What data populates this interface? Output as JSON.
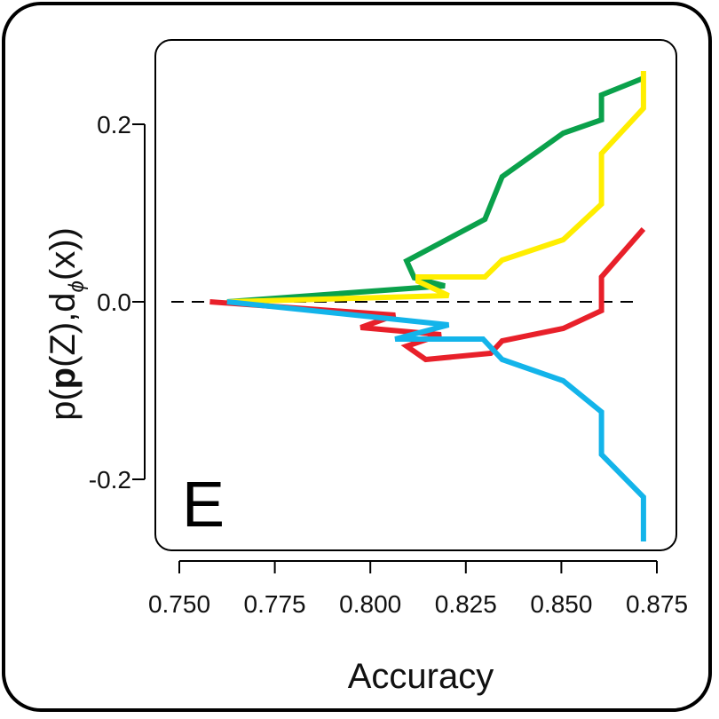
{
  "panel_label": "E",
  "colors": {
    "green": "#0aa14b",
    "yellow": "#ffee00",
    "red": "#e8202a",
    "blue": "#13b4ea",
    "frame": "#000000",
    "zero_line": "#000000"
  },
  "chart_data": {
    "type": "line",
    "xlabel": "Accuracy",
    "ylabel": {
      "p1": "p(",
      "bold": "p",
      "p2": "(Z),d",
      "sub": "ϕ",
      "p3": "(x))"
    },
    "xlim": [
      0.748,
      0.878
    ],
    "ylim": [
      -0.27,
      0.29
    ],
    "x_ticks": [
      0.75,
      0.775,
      0.8,
      0.825,
      0.85,
      0.875
    ],
    "x_tick_labels": [
      "0.750",
      "0.775",
      "0.800",
      "0.825",
      "0.850",
      "0.875"
    ],
    "y_ticks": [
      0.2,
      0.0,
      -0.2
    ],
    "y_tick_labels": [
      "0.2",
      "0.0",
      "-0.2"
    ],
    "reference_line": {
      "y": 0.0,
      "style": "dashed"
    },
    "grid": false,
    "series": [
      {
        "color_key": "green",
        "points": [
          [
            0.7625,
            0.0
          ],
          [
            0.8195,
            0.018
          ],
          [
            0.8115,
            0.027
          ],
          [
            0.8095,
            0.046
          ],
          [
            0.83,
            0.093
          ],
          [
            0.8345,
            0.141
          ],
          [
            0.8505,
            0.19
          ],
          [
            0.8605,
            0.205
          ],
          [
            0.8605,
            0.233
          ],
          [
            0.8715,
            0.252
          ]
        ]
      },
      {
        "color_key": "yellow",
        "points": [
          [
            0.7625,
            0.0
          ],
          [
            0.8205,
            0.007
          ],
          [
            0.8125,
            0.023
          ],
          [
            0.8125,
            0.028
          ],
          [
            0.83,
            0.028
          ],
          [
            0.8345,
            0.047
          ],
          [
            0.8505,
            0.07
          ],
          [
            0.8605,
            0.11
          ],
          [
            0.8605,
            0.167
          ],
          [
            0.8715,
            0.218
          ],
          [
            0.8715,
            0.26
          ]
        ]
      },
      {
        "color_key": "red",
        "points": [
          [
            0.758,
            0.0
          ],
          [
            0.8065,
            -0.015
          ],
          [
            0.7975,
            -0.029
          ],
          [
            0.8185,
            -0.037
          ],
          [
            0.8095,
            -0.05
          ],
          [
            0.8145,
            -0.065
          ],
          [
            0.8315,
            -0.058
          ],
          [
            0.8345,
            -0.044
          ],
          [
            0.8505,
            -0.03
          ],
          [
            0.8605,
            -0.01
          ],
          [
            0.8605,
            0.028
          ],
          [
            0.8715,
            0.082
          ]
        ]
      },
      {
        "color_key": "blue",
        "points": [
          [
            0.7625,
            0.0
          ],
          [
            0.8205,
            -0.026
          ],
          [
            0.8065,
            -0.042
          ],
          [
            0.8295,
            -0.042
          ],
          [
            0.8345,
            -0.065
          ],
          [
            0.8505,
            -0.089
          ],
          [
            0.8605,
            -0.124
          ],
          [
            0.8605,
            -0.172
          ],
          [
            0.8715,
            -0.22
          ],
          [
            0.8715,
            -0.27
          ]
        ]
      }
    ]
  }
}
